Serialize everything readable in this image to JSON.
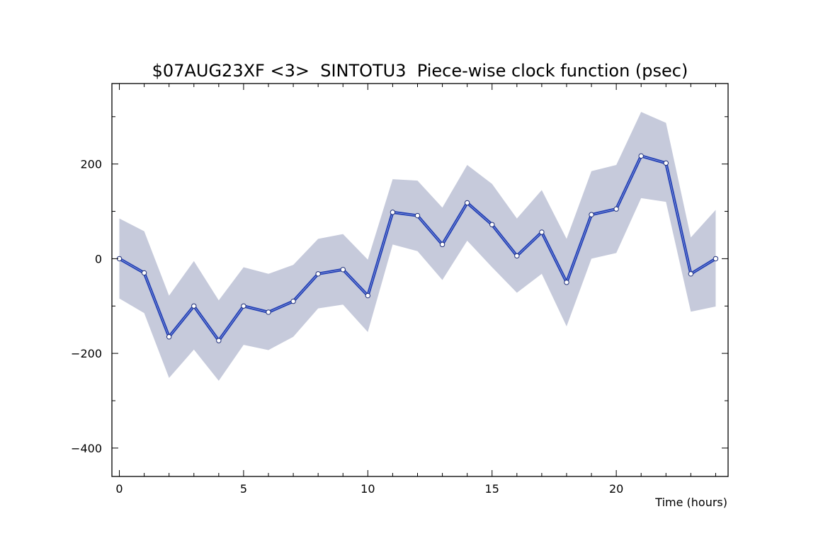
{
  "chart_data": {
    "type": "line",
    "title": "$07AUG23XF <3>  SINTOTU3  Piece-wise clock function (psec)",
    "xlabel": "Time (hours)",
    "ylabel": "",
    "xlim": [
      -0.3,
      24.5
    ],
    "ylim": [
      -460,
      370
    ],
    "xticks": [
      0,
      5,
      10,
      15,
      20
    ],
    "yticks": [
      -400,
      -200,
      0,
      200
    ],
    "xtick_labels": [
      "0",
      "5",
      "10",
      "15",
      "20"
    ],
    "ytick_labels": [
      "−400",
      "−200",
      "0",
      "200"
    ],
    "grid": false,
    "colors": {
      "line": "#2340b4",
      "band": "#c6cadb",
      "marker_fill": "#ffffff"
    },
    "x": [
      0,
      1,
      2,
      3,
      4,
      5,
      6,
      7,
      8,
      9,
      10,
      11,
      12,
      13,
      14,
      15,
      16,
      17,
      18,
      19,
      20,
      21,
      22,
      23,
      24
    ],
    "series": [
      {
        "values": [
          0,
          -30,
          -165,
          -100,
          -173,
          -100,
          -113,
          -90,
          -32,
          -23,
          -78,
          98,
          91,
          30,
          118,
          72,
          6,
          56,
          -50,
          93,
          105,
          217,
          202,
          -32,
          0
        ],
        "band_upper": [
          85,
          58,
          -78,
          -5,
          -88,
          -18,
          -32,
          -13,
          42,
          52,
          -2,
          168,
          165,
          108,
          198,
          158,
          85,
          145,
          42,
          185,
          198,
          310,
          287,
          45,
          103
        ],
        "band_lower": [
          -84,
          -115,
          -252,
          -192,
          -258,
          -182,
          -193,
          -165,
          -105,
          -97,
          -155,
          30,
          16,
          -45,
          38,
          -18,
          -72,
          -32,
          -143,
          0,
          12,
          128,
          120,
          -112,
          -101
        ]
      }
    ]
  }
}
